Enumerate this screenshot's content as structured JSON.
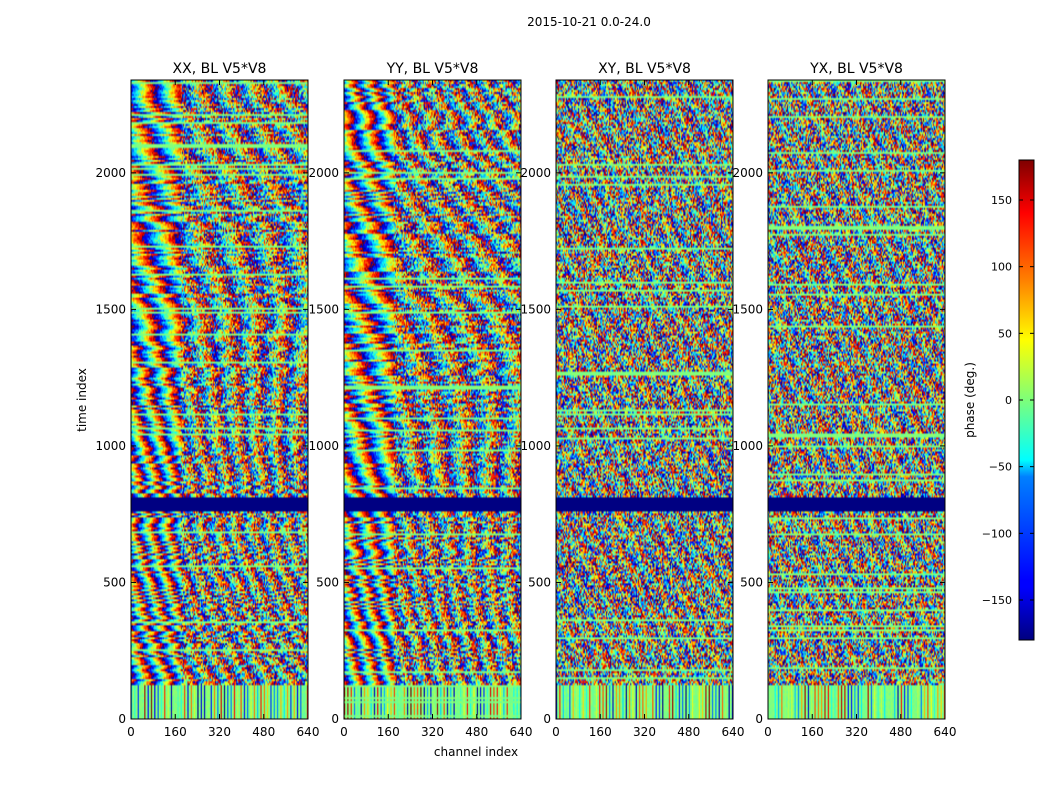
{
  "figure_title": "2015-10-21 0.0-24.0",
  "chart_data": {
    "type": "heatmap",
    "title": "2015-10-21 0.0-24.0",
    "xlabel": "channel index",
    "ylabel": "time index",
    "x_range": [
      0,
      640
    ],
    "y_range": [
      0,
      2340
    ],
    "x_ticks": [
      0,
      160,
      320,
      480,
      640
    ],
    "y_ticks": [
      0,
      500,
      1000,
      1500,
      2000
    ],
    "panels": [
      {
        "title": "XX, BL V5*V8",
        "pol": "XX",
        "pattern": "fringe"
      },
      {
        "title": "YY, BL V5*V8",
        "pol": "YY",
        "pattern": "fringe"
      },
      {
        "title": "XY, BL V5*V8",
        "pol": "XY",
        "pattern": "noise"
      },
      {
        "title": "YX, BL V5*V8",
        "pol": "YX",
        "pattern": "noise"
      }
    ],
    "flagged_row_bands": [
      [
        760,
        810
      ]
    ],
    "colorbar": {
      "label": "phase (deg.)",
      "range": [
        -180,
        180
      ],
      "ticks": [
        150,
        100,
        50,
        0,
        -50,
        -100,
        -150
      ],
      "tick_labels": [
        "150",
        "100",
        "50",
        "0",
        "−50",
        "−100",
        "−150"
      ],
      "colormap": "jet"
    }
  }
}
